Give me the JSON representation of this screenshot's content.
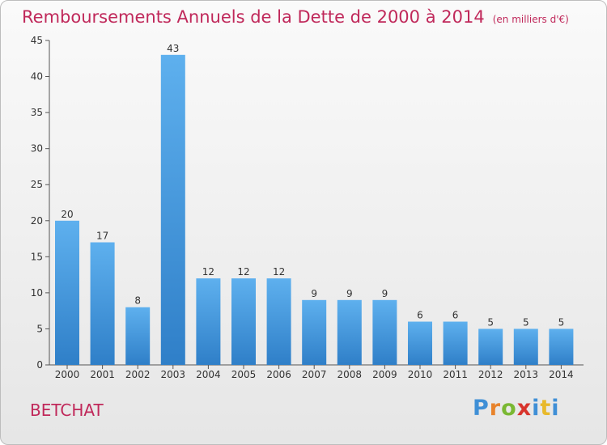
{
  "header": {
    "title": "Remboursements Annuels de la Dette de 2000 à 2014",
    "unit": "(en milliers d'€)"
  },
  "footer": {
    "commune": "BETCHAT"
  },
  "logo": {
    "letters": [
      "P",
      "r",
      "o",
      "x",
      "i",
      "t",
      "i"
    ]
  },
  "colors": {
    "title": "#c0285a",
    "bar_light": "#5eb0ee",
    "bar_dark": "#2f7fc8"
  },
  "chart_data": {
    "type": "bar",
    "categories": [
      "2000",
      "2001",
      "2002",
      "2003",
      "2004",
      "2005",
      "2006",
      "2007",
      "2008",
      "2009",
      "2010",
      "2011",
      "2012",
      "2013",
      "2014"
    ],
    "values": [
      20,
      17,
      8,
      43,
      12,
      12,
      12,
      9,
      9,
      9,
      6,
      6,
      5,
      5,
      5
    ],
    "title": "Remboursements Annuels de la Dette de 2000 à 2014",
    "unit": "(en milliers d'€)",
    "ylim": [
      0,
      45
    ],
    "yticks": [
      0,
      5,
      10,
      15,
      20,
      25,
      30,
      35,
      40,
      45
    ],
    "grid": false,
    "data_labels": true
  }
}
